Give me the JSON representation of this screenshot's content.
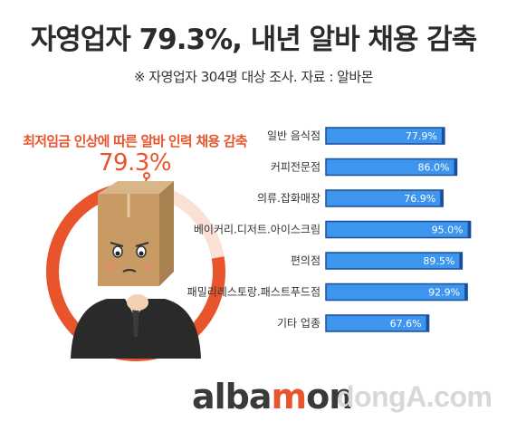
{
  "title": "자영업자 79.3%, 내년 알바 채용 감축",
  "source": "※ 자영업자 304명 대상 조사. 자료 : 알바몬",
  "callout": {
    "label": "최저임금 인상에 따른 알바 인력 채용 감축",
    "value": "79.3%",
    "ring_fraction": 0.793
  },
  "logo": {
    "text_before": "alba",
    "accent": "m",
    "text_after": "on",
    "accent_color": "#e8552c"
  },
  "watermark": "dongA.com",
  "colors": {
    "bar": "#3d95ee",
    "bar_border": "#1a4f9a",
    "accent": "#e8552c",
    "ring_track": "#fbe0d6"
  },
  "chart_data": {
    "type": "bar",
    "orientation": "horizontal",
    "categories": [
      "일반 음식점",
      "커피전문점",
      "의류.잡화매장",
      "베이커리.디저트.아이스크림",
      "편의점",
      "패밀리레스토랑.패스트푸드점",
      "기타 업종"
    ],
    "values": [
      77.9,
      86.0,
      76.9,
      95.0,
      89.5,
      92.9,
      67.6
    ],
    "value_labels": [
      "77.9%",
      "86.0%",
      "76.9%",
      "95.0%",
      "89.5%",
      "92.9%",
      "67.6%"
    ],
    "unit": "%",
    "xlim": [
      0,
      100
    ],
    "grid": false
  }
}
